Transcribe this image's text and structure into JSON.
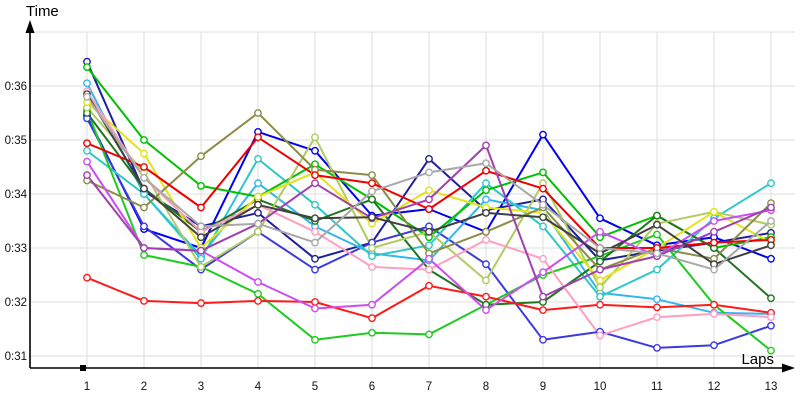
{
  "chart_data": {
    "type": "line",
    "title": "",
    "xlabel": "Laps",
    "ylabel": "Time",
    "x": [
      1,
      2,
      3,
      4,
      5,
      6,
      7,
      8,
      9,
      10,
      11,
      12,
      13
    ],
    "x_tick_labels": [
      "1",
      "2",
      "3",
      "4",
      "5",
      "6",
      "7",
      "8",
      "9",
      "10",
      "11",
      "12",
      "13"
    ],
    "y_ticks": [
      {
        "value": 36,
        "label": "0:36"
      },
      {
        "value": 35,
        "label": "0:35"
      },
      {
        "value": 34,
        "label": "0:34"
      },
      {
        "value": 33,
        "label": "0:33"
      },
      {
        "value": 32,
        "label": "0:32"
      },
      {
        "value": 31,
        "label": "0:31"
      }
    ],
    "ylim": [
      30.8,
      37.2
    ],
    "grid": true,
    "legend": "none",
    "grid_color": "#dcdcdc",
    "axis_color": "#000000",
    "marker": {
      "shape": "circle",
      "fill": "#ffffff"
    },
    "series": [
      {
        "name": "series-navy",
        "color": "#1f1f9c",
        "values": [
          36.45,
          34.05,
          33.4,
          33.65,
          32.8,
          33.1,
          34.65,
          33.7,
          33.9,
          32.77,
          32.95,
          33.1,
          33.28
        ]
      },
      {
        "name": "series-blue",
        "color": "#0000f0",
        "values": [
          35.45,
          33.35,
          33.0,
          35.15,
          34.8,
          33.6,
          33.72,
          33.3,
          35.1,
          33.55,
          33.05,
          33.2,
          32.8
        ]
      },
      {
        "name": "series-blue2",
        "color": "#3a3ae0",
        "values": [
          35.4,
          33.4,
          32.6,
          33.3,
          32.6,
          33.1,
          33.4,
          32.7,
          31.3,
          31.45,
          31.15,
          31.2,
          31.56
        ]
      },
      {
        "name": "series-skyblue",
        "color": "#33b5f0",
        "values": [
          36.05,
          34.0,
          32.85,
          34.2,
          33.4,
          32.9,
          32.77,
          33.9,
          33.7,
          32.17,
          32.05,
          31.8,
          31.78
        ]
      },
      {
        "name": "series-cyan",
        "color": "#2cc8c8",
        "values": [
          34.8,
          34.0,
          32.8,
          34.65,
          33.8,
          32.85,
          33.05,
          34.2,
          33.4,
          32.1,
          32.6,
          33.55,
          34.2
        ]
      },
      {
        "name": "series-green",
        "color": "#00c000",
        "values": [
          36.35,
          35.0,
          34.15,
          33.95,
          34.55,
          33.9,
          33.2,
          34.07,
          34.4,
          33.2,
          33.6,
          33.0,
          33.2
        ]
      },
      {
        "name": "series-green2",
        "color": "#1ecb1e",
        "values": [
          35.55,
          32.87,
          32.65,
          32.15,
          31.3,
          31.43,
          31.4,
          31.95,
          32.5,
          32.85,
          33.25,
          31.95,
          31.1
        ]
      },
      {
        "name": "series-darkgreen",
        "color": "#207520",
        "values": [
          35.5,
          34.1,
          33.3,
          33.9,
          33.5,
          33.9,
          32.6,
          31.95,
          32.0,
          32.75,
          33.6,
          33.0,
          32.07
        ]
      },
      {
        "name": "series-lightgreen",
        "color": "#b0cc60",
        "values": [
          35.6,
          34.4,
          32.65,
          33.3,
          35.05,
          33.0,
          33.3,
          32.4,
          34.2,
          32.27,
          33.45,
          33.67,
          33.43
        ]
      },
      {
        "name": "series-yellow",
        "color": "#e3e319",
        "values": [
          35.7,
          34.75,
          33.0,
          33.95,
          34.4,
          33.45,
          34.07,
          33.75,
          33.65,
          32.4,
          33.0,
          33.67,
          33.1
        ]
      },
      {
        "name": "series-olive",
        "color": "#8c8c46",
        "values": [
          34.25,
          33.75,
          34.7,
          35.5,
          34.45,
          34.35,
          32.9,
          33.3,
          33.75,
          32.6,
          33.0,
          32.8,
          33.83
        ]
      },
      {
        "name": "series-red",
        "color": "#f00000",
        "values": [
          34.94,
          34.5,
          33.75,
          35.05,
          34.35,
          34.2,
          33.72,
          34.43,
          34.1,
          33.0,
          33.0,
          33.1,
          33.15
        ]
      },
      {
        "name": "series-red2",
        "color": "#ff1a1a",
        "values": [
          32.45,
          32.02,
          31.98,
          32.02,
          32.0,
          31.7,
          32.3,
          32.1,
          31.85,
          31.95,
          31.9,
          31.95,
          31.8
        ]
      },
      {
        "name": "series-pink",
        "color": "#ff9ec0",
        "values": [
          35.9,
          34.3,
          33.3,
          33.8,
          33.3,
          32.65,
          32.6,
          33.15,
          32.8,
          31.38,
          31.72,
          31.78,
          31.72
        ]
      },
      {
        "name": "series-violet",
        "color": "#cc4df2",
        "values": [
          34.6,
          33.0,
          32.95,
          32.37,
          31.88,
          31.95,
          32.8,
          31.85,
          32.55,
          33.3,
          32.85,
          33.5,
          33.7
        ]
      },
      {
        "name": "series-purple",
        "color": "#a040b0",
        "values": [
          34.35,
          33.0,
          32.95,
          33.45,
          34.2,
          33.55,
          33.9,
          34.9,
          32.1,
          32.6,
          32.85,
          33.3,
          33.75
        ]
      },
      {
        "name": "series-darkgray",
        "color": "#404040",
        "values": [
          35.85,
          34.1,
          33.2,
          33.8,
          33.55,
          33.57,
          33.3,
          33.65,
          33.57,
          32.9,
          33.43,
          32.7,
          33.05
        ]
      },
      {
        "name": "series-silver",
        "color": "#a8a8a8",
        "values": [
          35.8,
          34.3,
          33.4,
          33.45,
          33.1,
          34.05,
          34.4,
          34.57,
          33.8,
          33.0,
          32.9,
          32.6,
          33.5
        ]
      }
    ]
  }
}
